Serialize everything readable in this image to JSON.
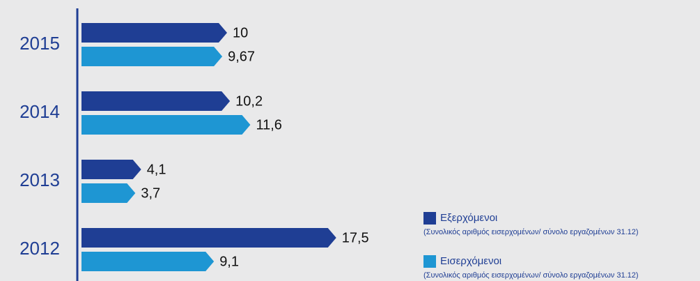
{
  "chart_data": {
    "type": "bar",
    "orientation": "horizontal",
    "categories": [
      "2015",
      "2014",
      "2013",
      "2012"
    ],
    "series": [
      {
        "name": "Εξερχόμενοι",
        "note": "(Συνολικός αριθμός εισερχομένων/ σύνολο εργαζομένων 31.12)",
        "color": "#1f3e94",
        "values": [
          10,
          10.2,
          4.1,
          17.5
        ],
        "value_labels": [
          "10",
          "10,2",
          "4,1",
          "17,5"
        ]
      },
      {
        "name": "Εισερχόμενοι",
        "note": "(Συνολικός αριθμός εισερχομένων/ σύνολο εργαζομένων 31.12)",
        "color": "#1e96d3",
        "values": [
          9.67,
          11.6,
          3.7,
          9.1
        ],
        "value_labels": [
          "9,67",
          "11,6",
          "3,7",
          "9,1"
        ]
      }
    ]
  }
}
